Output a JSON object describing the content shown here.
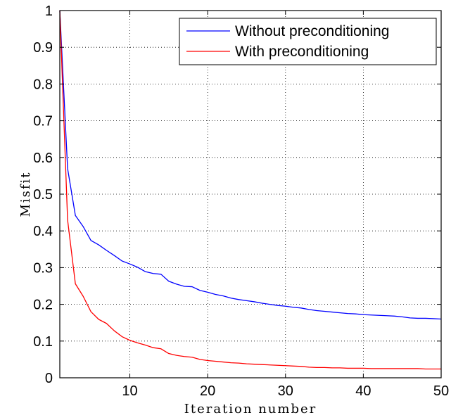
{
  "chart_data": {
    "type": "line",
    "title": "",
    "xlabel": "Iteration number",
    "ylabel": "Misfit",
    "xlim": [
      1,
      50
    ],
    "ylim": [
      0,
      1
    ],
    "xticks": [
      10,
      20,
      30,
      40,
      50
    ],
    "yticks": [
      0,
      0.1,
      0.2,
      0.3,
      0.4,
      0.5,
      0.6,
      0.7,
      0.8,
      0.9,
      1
    ],
    "grid": true,
    "legend_position": "top-right",
    "x": [
      1,
      2,
      3,
      4,
      5,
      6,
      7,
      8,
      9,
      10,
      11,
      12,
      13,
      14,
      15,
      16,
      17,
      18,
      19,
      20,
      21,
      22,
      23,
      24,
      25,
      26,
      27,
      28,
      29,
      30,
      31,
      32,
      33,
      34,
      35,
      36,
      37,
      38,
      39,
      40,
      41,
      42,
      43,
      44,
      45,
      46,
      47,
      48,
      49,
      50
    ],
    "series": [
      {
        "name": "Without preconditioning",
        "color": "#0000ff",
        "values": [
          1.0,
          0.57,
          0.442,
          0.412,
          0.374,
          0.362,
          0.347,
          0.333,
          0.318,
          0.31,
          0.301,
          0.289,
          0.284,
          0.282,
          0.263,
          0.255,
          0.249,
          0.248,
          0.238,
          0.233,
          0.227,
          0.223,
          0.217,
          0.213,
          0.21,
          0.207,
          0.203,
          0.2,
          0.197,
          0.195,
          0.192,
          0.19,
          0.186,
          0.183,
          0.181,
          0.179,
          0.177,
          0.175,
          0.174,
          0.172,
          0.171,
          0.17,
          0.169,
          0.168,
          0.166,
          0.163,
          0.162,
          0.162,
          0.161,
          0.16
        ]
      },
      {
        "name": "With preconditioning",
        "color": "#ff0000",
        "values": [
          1.0,
          0.43,
          0.256,
          0.222,
          0.18,
          0.159,
          0.148,
          0.128,
          0.112,
          0.102,
          0.095,
          0.089,
          0.082,
          0.079,
          0.066,
          0.061,
          0.058,
          0.056,
          0.05,
          0.047,
          0.045,
          0.043,
          0.041,
          0.04,
          0.038,
          0.037,
          0.036,
          0.035,
          0.034,
          0.033,
          0.032,
          0.031,
          0.029,
          0.028,
          0.028,
          0.027,
          0.027,
          0.026,
          0.026,
          0.026,
          0.025,
          0.025,
          0.025,
          0.025,
          0.025,
          0.025,
          0.025,
          0.024,
          0.024,
          0.024
        ]
      }
    ]
  }
}
